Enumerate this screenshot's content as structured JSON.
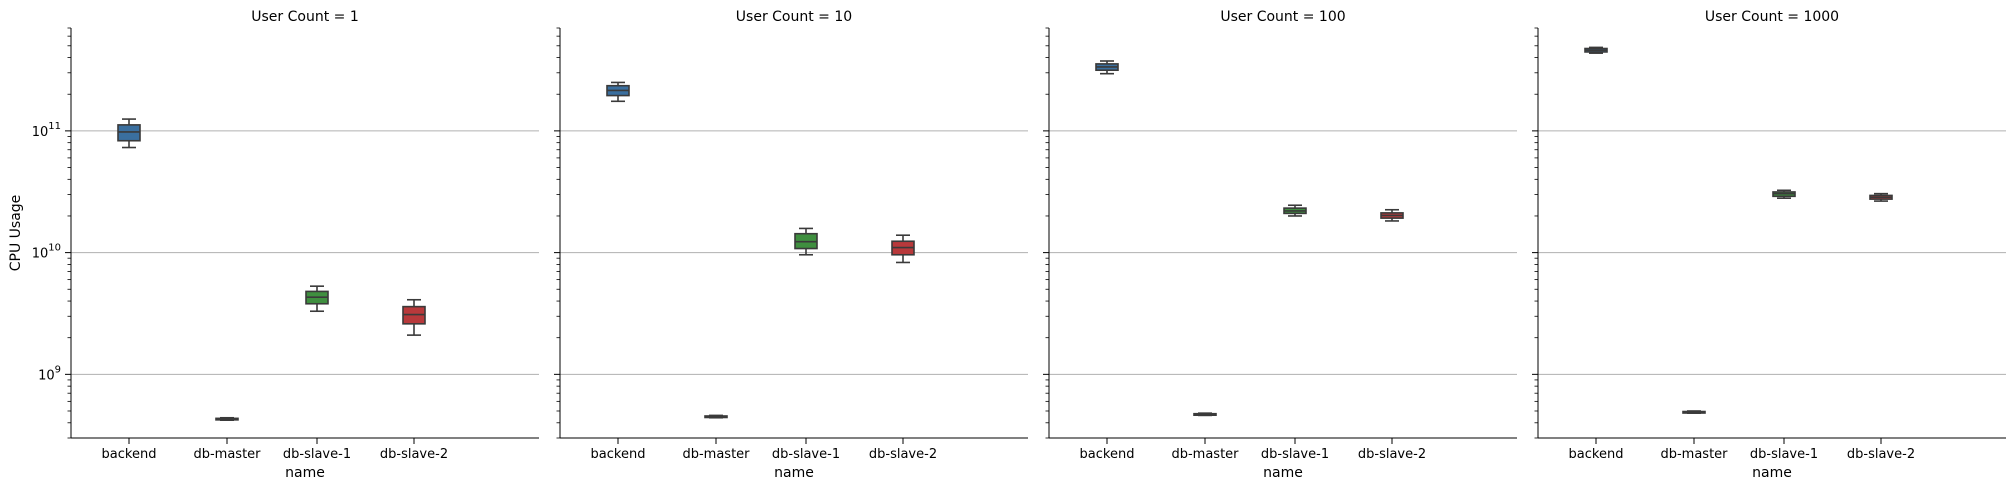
{
  "chart_data": {
    "type": "box",
    "y_scale": "log",
    "ylim": [
      300000000.0,
      700000000000.0
    ],
    "grid": "y-major",
    "ylabel": "CPU Usage",
    "xlabel": "name",
    "y_ticks": [
      {
        "value": 1000000000.0,
        "base": "10",
        "exp": "9"
      },
      {
        "value": 10000000000.0,
        "base": "10",
        "exp": "10"
      },
      {
        "value": 100000000000.0,
        "base": "10",
        "exp": "11"
      }
    ],
    "categories": [
      "backend",
      "db-master",
      "db-slave-1",
      "db-slave-2"
    ],
    "colors": {
      "backend": "#3a6f9f",
      "db-master": "#c47a3a",
      "db-slave-1": "#3f8f3f",
      "db-slave-2": "#b8393b"
    },
    "panels": [
      {
        "title": "User Count = 1",
        "boxes": [
          {
            "name": "backend",
            "whislo": 73000000000.0,
            "q1": 83000000000.0,
            "med": 98000000000.0,
            "q3": 112000000000.0,
            "whishi": 125000000000.0
          },
          {
            "name": "db-master",
            "whislo": 420000000.0,
            "q1": 425000000.0,
            "med": 430000000.0,
            "q3": 435000000.0,
            "whishi": 440000000.0
          },
          {
            "name": "db-slave-1",
            "whislo": 3300000000.0,
            "q1": 3800000000.0,
            "med": 4300000000.0,
            "q3": 4800000000.0,
            "whishi": 5300000000.0
          },
          {
            "name": "db-slave-2",
            "whislo": 2100000000.0,
            "q1": 2600000000.0,
            "med": 3100000000.0,
            "q3": 3600000000.0,
            "whishi": 4100000000.0
          }
        ]
      },
      {
        "title": "User Count = 10",
        "boxes": [
          {
            "name": "backend",
            "whislo": 175000000000.0,
            "q1": 195000000000.0,
            "med": 215000000000.0,
            "q3": 235000000000.0,
            "whishi": 250000000000.0
          },
          {
            "name": "db-master",
            "whislo": 440000000.0,
            "q1": 445000000.0,
            "med": 450000000.0,
            "q3": 455000000.0,
            "whishi": 460000000.0
          },
          {
            "name": "db-slave-1",
            "whislo": 9600000000.0,
            "q1": 10800000000.0,
            "med": 12300000000.0,
            "q3": 14300000000.0,
            "whishi": 15800000000.0
          },
          {
            "name": "db-slave-2",
            "whislo": 8300000000.0,
            "q1": 9600000000.0,
            "med": 11000000000.0,
            "q3": 12400000000.0,
            "whishi": 13900000000.0
          }
        ]
      },
      {
        "title": "User Count = 100",
        "boxes": [
          {
            "name": "backend",
            "whislo": 295000000000.0,
            "q1": 315000000000.0,
            "med": 335000000000.0,
            "q3": 355000000000.0,
            "whishi": 375000000000.0
          },
          {
            "name": "db-master",
            "whislo": 460000000.0,
            "q1": 465000000.0,
            "med": 470000000.0,
            "q3": 475000000.0,
            "whishi": 480000000.0
          },
          {
            "name": "db-slave-1",
            "whislo": 20000000000.0,
            "q1": 21000000000.0,
            "med": 22000000000.0,
            "q3": 23200000000.0,
            "whishi": 24500000000.0
          },
          {
            "name": "db-slave-2",
            "whislo": 18200000000.0,
            "q1": 19200000000.0,
            "med": 20200000000.0,
            "q3": 21200000000.0,
            "whishi": 22500000000.0
          }
        ]
      },
      {
        "title": "User Count = 1000",
        "boxes": [
          {
            "name": "backend",
            "whislo": 435000000000.0,
            "q1": 445000000000.0,
            "med": 460000000000.0,
            "q3": 475000000000.0,
            "whishi": 485000000000.0
          },
          {
            "name": "db-master",
            "whislo": 480000000.0,
            "q1": 485000000.0,
            "med": 490000000.0,
            "q3": 495000000.0,
            "whishi": 500000000.0
          },
          {
            "name": "db-slave-1",
            "whislo": 28000000000.0,
            "q1": 29000000000.0,
            "med": 30500000000.0,
            "q3": 31500000000.0,
            "whishi": 32500000000.0
          },
          {
            "name": "db-slave-2",
            "whislo": 26500000000.0,
            "q1": 27500000000.0,
            "med": 28500000000.0,
            "q3": 29500000000.0,
            "whishi": 30500000000.0
          }
        ]
      }
    ]
  }
}
